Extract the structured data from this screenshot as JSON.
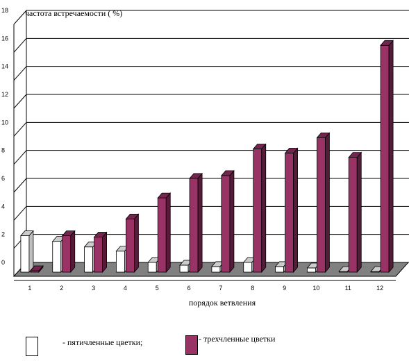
{
  "chart_data": {
    "type": "bar",
    "title": "",
    "ylabel": "частота встречаемости ( %)",
    "xlabel": "порядок ветвления",
    "categories": [
      "1",
      "2",
      "3",
      "4",
      "5",
      "6",
      "7",
      "8",
      "9",
      "10",
      "11",
      "12"
    ],
    "y_tick_labels": [
      "0",
      "2",
      "4",
      "6",
      "8",
      "10",
      "12",
      "14",
      "16",
      "18"
    ],
    "ylim": [
      0,
      18
    ],
    "series": [
      {
        "name": "- пятичленные цветки;",
        "color": "#ffffff",
        "values": [
          2.6,
          2.2,
          1.8,
          1.5,
          0.7,
          0.5,
          0.4,
          0.7,
          0.4,
          0.3,
          0.05,
          0.05
        ]
      },
      {
        "name": "- трехчленные цветки",
        "color": "#993366",
        "values": [
          0.1,
          2.6,
          2.5,
          3.8,
          5.3,
          6.7,
          6.9,
          8.8,
          8.5,
          9.6,
          8.2,
          16.2
        ]
      }
    ],
    "grid": true,
    "legend_position": "bottom"
  }
}
